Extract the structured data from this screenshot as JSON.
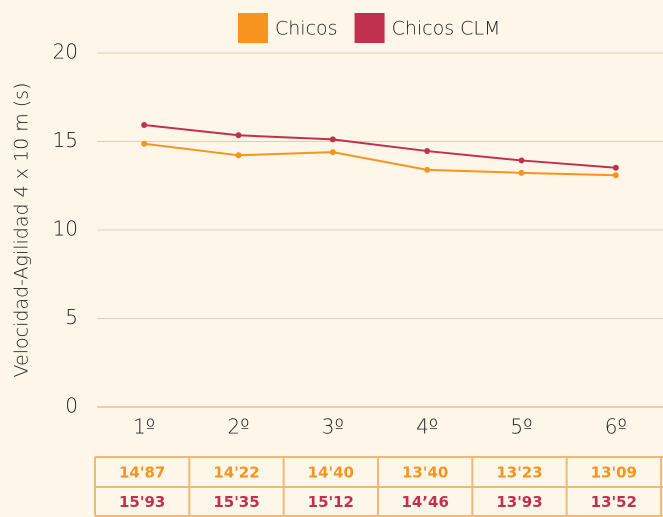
{
  "chart_data": {
    "type": "line",
    "y_label": "Velocidad-Agilidad 4 x 10 m (s)",
    "categories": [
      "1º",
      "2º",
      "3º",
      "4º",
      "5º",
      "6º"
    ],
    "series": [
      {
        "name": "Chicos",
        "color": "#f7941d",
        "values": [
          14.87,
          14.22,
          14.4,
          13.4,
          13.23,
          13.09
        ],
        "value_labels": [
          "14'87",
          "14'22",
          "14'40",
          "13'40",
          "13'23",
          "13'09"
        ]
      },
      {
        "name": "Chicos CLM",
        "color": "#c1304f",
        "values": [
          15.93,
          15.35,
          15.12,
          14.46,
          13.93,
          13.52
        ],
        "value_labels": [
          "15'93",
          "15'35",
          "15'12",
          "14’46",
          "13'93",
          "13'52"
        ]
      }
    ],
    "ylim": [
      0,
      20
    ],
    "yticks": [
      0,
      5,
      10,
      15,
      20
    ],
    "grid": true,
    "legend": "top"
  }
}
